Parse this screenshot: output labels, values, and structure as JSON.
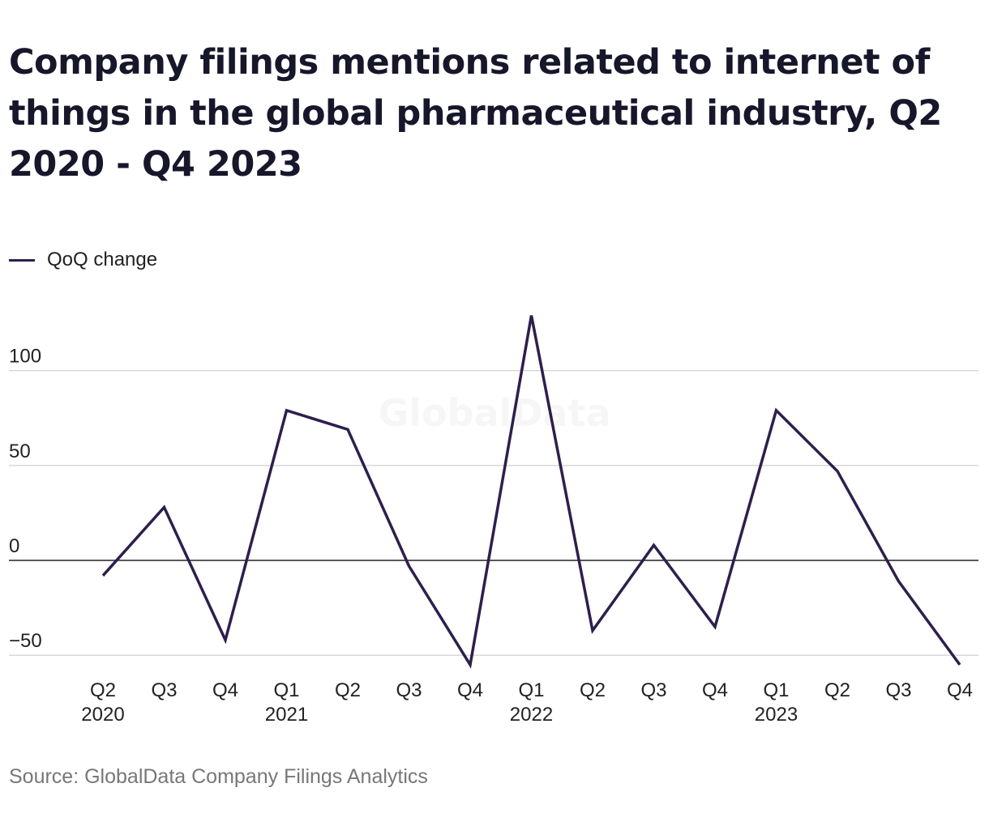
{
  "title": "Company filings mentions related to internet of things in the global pharmaceutical industry, Q2 2020 - Q4 2023",
  "source": "Source: GlobalData Company Filings Analytics",
  "watermark": "GlobalData",
  "chart_data": {
    "type": "line",
    "title": "Company filings mentions related to internet of things in the global pharmaceutical industry, Q2 2020 - Q4 2023",
    "xlabel": "",
    "ylabel": "",
    "legend": "top-left",
    "grid": true,
    "ylim": [
      -50,
      130
    ],
    "yticks": [
      -50,
      0,
      50,
      100
    ],
    "ytick_labels": [
      "−50",
      "0",
      "50",
      "100"
    ],
    "categories": [
      {
        "q": "Q2",
        "year": "2020"
      },
      {
        "q": "Q3",
        "year": ""
      },
      {
        "q": "Q4",
        "year": ""
      },
      {
        "q": "Q1",
        "year": "2021"
      },
      {
        "q": "Q2",
        "year": ""
      },
      {
        "q": "Q3",
        "year": ""
      },
      {
        "q": "Q4",
        "year": ""
      },
      {
        "q": "Q1",
        "year": "2022"
      },
      {
        "q": "Q2",
        "year": ""
      },
      {
        "q": "Q3",
        "year": ""
      },
      {
        "q": "Q4",
        "year": ""
      },
      {
        "q": "Q1",
        "year": "2023"
      },
      {
        "q": "Q2",
        "year": ""
      },
      {
        "q": "Q3",
        "year": ""
      },
      {
        "q": "Q4",
        "year": ""
      }
    ],
    "series": [
      {
        "name": "QoQ change",
        "color": "#2d1f4d",
        "values": [
          -8,
          28,
          -42,
          79,
          69,
          -3,
          -55,
          129,
          -37,
          8,
          -35,
          79,
          47,
          -11,
          -55
        ]
      }
    ]
  }
}
